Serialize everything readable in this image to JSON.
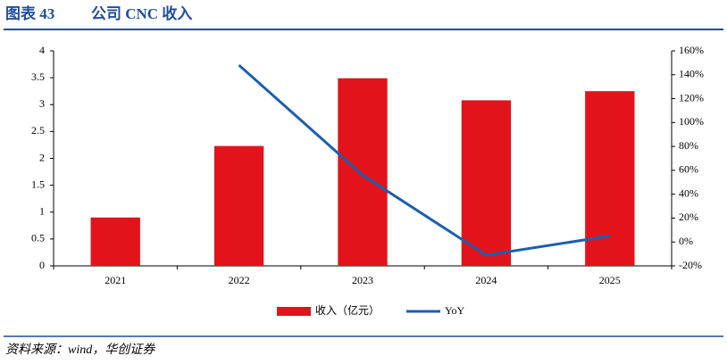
{
  "chart_data": {
    "type": "bar_line",
    "label": "图表 43",
    "title": "公司 CNC 收入",
    "categories": [
      "2021",
      "2022",
      "2023",
      "2024",
      "2025"
    ],
    "series": [
      {
        "name": "收入（亿元）",
        "type": "bar",
        "color": "#e3131b",
        "values": [
          0.9,
          2.23,
          3.49,
          3.08,
          3.25
        ]
      },
      {
        "name": "YoY",
        "type": "line",
        "axis": "y2",
        "color": "#1b5fae",
        "values": [
          null,
          148,
          56,
          -11,
          5
        ]
      }
    ],
    "ylim": [
      0,
      4
    ],
    "yticks": [
      0,
      0.5,
      1,
      1.5,
      2,
      2.5,
      3,
      3.5,
      4
    ],
    "y2lim": [
      -20,
      160
    ],
    "y2ticks": [
      {
        "value": -20,
        "label": "-20%"
      },
      {
        "value": 0,
        "label": "0%"
      },
      {
        "value": 20,
        "label": "20%"
      },
      {
        "value": 40,
        "label": "40%"
      },
      {
        "value": 60,
        "label": "60%"
      },
      {
        "value": 80,
        "label": "80%"
      },
      {
        "value": 100,
        "label": "100%"
      },
      {
        "value": 120,
        "label": "120%"
      },
      {
        "value": 140,
        "label": "140%"
      },
      {
        "value": 160,
        "label": "160%"
      }
    ],
    "legend": "bottom",
    "source": "资料来源：wind，华创证券"
  }
}
